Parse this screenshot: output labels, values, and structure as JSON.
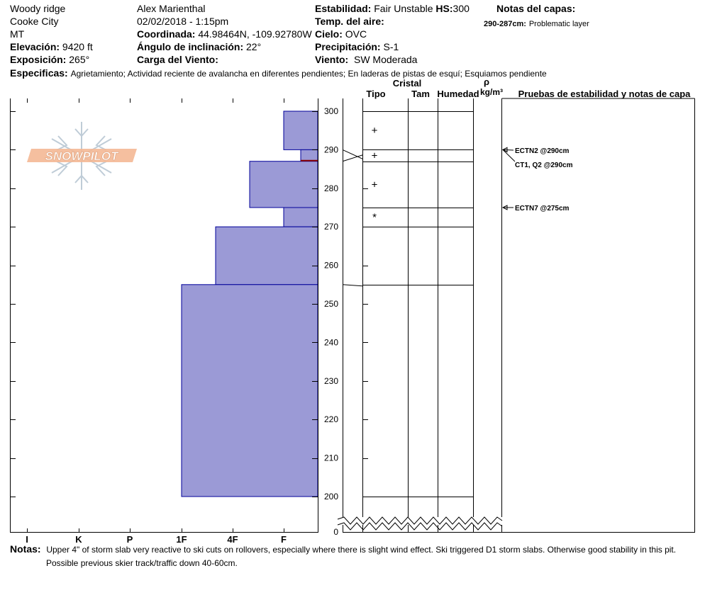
{
  "header": {
    "location": "Woody ridge",
    "city": "Cooke City",
    "state": "MT",
    "observer": "Alex Marienthal",
    "datetime": "02/02/2018 - 1:15pm",
    "elevation_label": "Elevación:",
    "elevation_value": "9420 ft",
    "aspect_label": "Exposición:",
    "aspect_value": "265°",
    "coord_label": "Coordinada:",
    "coord_value": "44.98464N, -109.92780W",
    "slope_label": "Ángulo de inclinación:",
    "slope_value": "22°",
    "wind_load_label": "Carga del Viento:",
    "stability_label": "Estabilidad:",
    "stability_value": "Fair Unstable",
    "hs_label": "HS:",
    "hs_value": "300",
    "air_temp_label": "Temp. del aire:",
    "sky_label": "Cielo:",
    "sky_value": "OVC",
    "precip_label": "Precipitación:",
    "precip_value": "S-1",
    "wind_label": "Viento:",
    "wind_value": "SW Moderada",
    "layer_notes_label": "Notas del capas:",
    "layer_note_range": "290-287cm:",
    "layer_note_text": "Problematic layer",
    "specifics_label": "Especificas:",
    "specifics_text": "Agrietamiento;  Actividad reciente de avalancha en diferentes pendientes;  En laderas de pistas de esquí;  Esquiamos pendiente"
  },
  "logo_text": "SNOWPILOT",
  "columns": {
    "crystal": "Cristal",
    "type": "Tipo",
    "size": "Tam",
    "moisture": "Humedad",
    "rho": "ρ",
    "density_unit": "kg/m³",
    "tests": "Pruebas de estabilidad y notas de capa"
  },
  "hardness_ticks": [
    "I",
    "K",
    "P",
    "1F",
    "4F",
    "F"
  ],
  "depth_ticks": [
    "300",
    "290",
    "280",
    "270",
    "260",
    "250",
    "240",
    "230",
    "220",
    "210",
    "200",
    "0"
  ],
  "notes_label": "Notas:",
  "notes_line1": "Upper 4\" of storm slab very reactive to ski cuts on rollovers, especially where there is slight wind effect. Ski triggered D1 storm slabs. Otherwise good stability in this pit.",
  "notes_line2": "Possible previous skier track/traffic down 40-60cm.",
  "colors": {
    "layer_fill": "#9b9ad6",
    "layer_stroke": "#00009a",
    "marker": "#8b0000",
    "logo": "#f3b08a"
  },
  "chart_data": {
    "type": "bar",
    "orientation": "horizontal",
    "x_scale": [
      "I",
      "K",
      "P",
      "1F",
      "4F",
      "F",
      "4F-F"
    ],
    "y_unit": "cm",
    "ylim": [
      200,
      300
    ],
    "layers": [
      {
        "top": 300,
        "bottom": 290,
        "hardness": "F+",
        "grain": "+"
      },
      {
        "top": 290,
        "bottom": 287,
        "hardness": "4F-F",
        "grain": "+"
      },
      {
        "top": 287,
        "bottom": 275,
        "hardness": "4F+",
        "grain": "+"
      },
      {
        "top": 275,
        "bottom": 270,
        "hardness": "F+",
        "grain": "*"
      },
      {
        "top": 270,
        "bottom": 255,
        "hardness": "1F+",
        "grain": ""
      },
      {
        "top": 255,
        "bottom": 200,
        "hardness": "1F-",
        "grain": ""
      }
    ],
    "layer_lines": [
      300,
      290,
      287,
      275,
      270,
      255,
      200
    ],
    "tests": [
      {
        "label": "ECTN2 @290cm",
        "depth": 290
      },
      {
        "label": "CT1, Q2 @290cm",
        "depth": 290
      },
      {
        "label": "ECTN7 @275cm",
        "depth": 275
      }
    ]
  }
}
